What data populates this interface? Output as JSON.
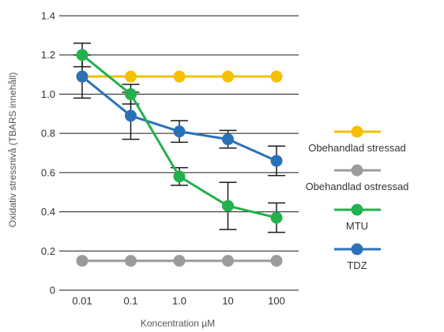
{
  "chart_data": {
    "type": "line",
    "xlabel": "Koncentration µM",
    "ylabel": "Oxidativ stressnivå (TBARS innehåll)",
    "categories": [
      "0.01",
      "0.1",
      "1.0",
      "10",
      "100"
    ],
    "ylim": [
      0,
      1.4
    ],
    "yticks": [
      "0",
      "0.2",
      "0.4",
      "0.6",
      "0.8",
      "1.0",
      "1.2",
      "1.4"
    ],
    "grid": "horizontal",
    "legend_position": "right",
    "series": [
      {
        "name": "Obehandlad stressad",
        "color": "#F5C000",
        "values": [
          1.09,
          1.09,
          1.09,
          1.09,
          1.09
        ]
      },
      {
        "name": "Obehandlad ostressad",
        "color": "#9B9B9B",
        "values": [
          0.15,
          0.15,
          0.15,
          0.15,
          0.15
        ]
      },
      {
        "name": "MTU",
        "color": "#22B14C",
        "values": [
          1.2,
          1.0,
          0.58,
          0.43,
          0.37
        ],
        "error": [
          0.06,
          0.05,
          0.045,
          0.12,
          0.075
        ]
      },
      {
        "name": "TDZ",
        "color": "#2A72B8",
        "values": [
          1.09,
          0.89,
          0.81,
          0.77,
          0.66
        ],
        "error": [
          0.11,
          0.12,
          0.055,
          0.045,
          0.075
        ]
      }
    ]
  }
}
